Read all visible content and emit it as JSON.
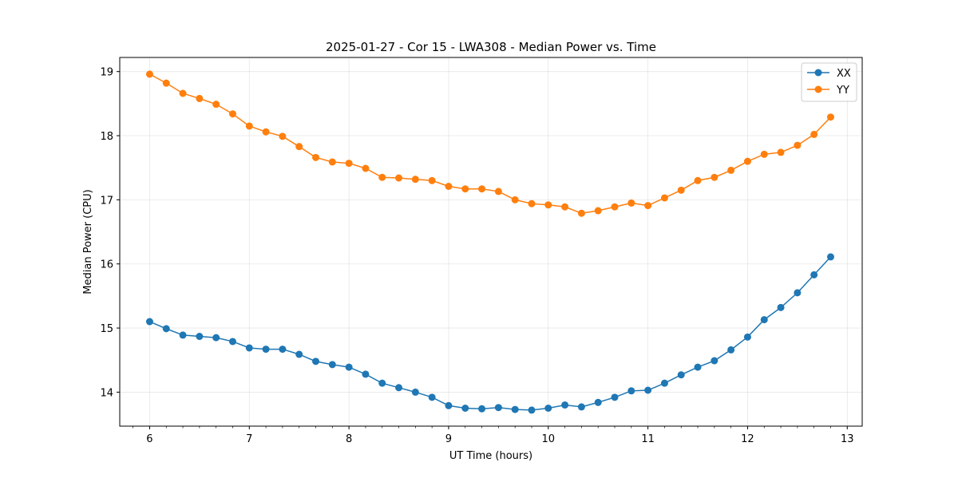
{
  "chart_data": {
    "type": "line",
    "title": "2025-01-27 - Cor 15 - LWA308 - Median Power vs. Time",
    "xlabel": "UT Time (hours)",
    "ylabel": "Median Power (CPU)",
    "xlim": [
      5.7,
      13.15
    ],
    "ylim": [
      13.47,
      19.22
    ],
    "xticks": [
      6,
      7,
      8,
      9,
      10,
      11,
      12,
      13
    ],
    "yticks": [
      14,
      15,
      16,
      17,
      18,
      19
    ],
    "grid": true,
    "legend_position": "top-right",
    "x": [
      6.0,
      6.1667,
      6.3333,
      6.5,
      6.6667,
      6.8333,
      7.0,
      7.1667,
      7.3333,
      7.5,
      7.6667,
      7.8333,
      8.0,
      8.1667,
      8.3333,
      8.5,
      8.6667,
      8.8333,
      9.0,
      9.1667,
      9.3333,
      9.5,
      9.6667,
      9.8333,
      10.0,
      10.1667,
      10.3333,
      10.5,
      10.6667,
      10.8333,
      11.0,
      11.1667,
      11.3333,
      11.5,
      11.6667,
      11.8333,
      12.0,
      12.1667,
      12.3333,
      12.5,
      12.6667,
      12.8333
    ],
    "series": [
      {
        "name": "XX",
        "color": "#1f77b4",
        "values": [
          15.1,
          14.99,
          14.89,
          14.87,
          14.85,
          14.79,
          14.69,
          14.67,
          14.67,
          14.59,
          14.48,
          14.43,
          14.39,
          14.28,
          14.14,
          14.07,
          14.0,
          13.92,
          13.79,
          13.75,
          13.74,
          13.76,
          13.73,
          13.72,
          13.75,
          13.8,
          13.77,
          13.84,
          13.92,
          14.02,
          14.03,
          14.14,
          14.27,
          14.39,
          14.49,
          14.66,
          14.86,
          15.13,
          15.32,
          15.55,
          15.83,
          16.11
        ]
      },
      {
        "name": "YY",
        "color": "#ff7f0e",
        "values": [
          18.96,
          18.82,
          18.66,
          18.58,
          18.49,
          18.34,
          18.15,
          18.06,
          17.99,
          17.83,
          17.66,
          17.59,
          17.57,
          17.49,
          17.35,
          17.34,
          17.32,
          17.3,
          17.21,
          17.17,
          17.17,
          17.13,
          17.0,
          16.94,
          16.92,
          16.89,
          16.79,
          16.83,
          16.89,
          16.95,
          16.91,
          17.03,
          17.15,
          17.3,
          17.35,
          17.46,
          17.6,
          17.71,
          17.74,
          17.85,
          18.02,
          18.29
        ]
      }
    ]
  }
}
